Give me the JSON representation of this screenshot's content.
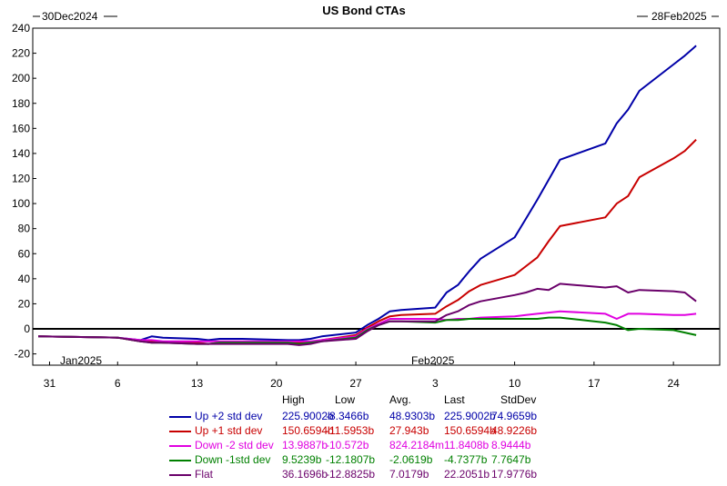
{
  "chart_data": {
    "type": "line",
    "title": "US Bond CTAs",
    "date_start": "30Dec2024",
    "date_end": "28Feb2025",
    "month_labels": [
      "Jan2025",
      "Feb2025"
    ],
    "x_tick_labels": [
      "31",
      "6",
      "13",
      "20",
      "27",
      "3",
      "10",
      "17",
      "24"
    ],
    "x_tick_dates": [
      "2024-12-31",
      "2025-01-06",
      "2025-01-13",
      "2025-01-20",
      "2025-01-27",
      "2025-02-03",
      "2025-02-10",
      "2025-02-17",
      "2025-02-24"
    ],
    "x_range": [
      "2024-12-30",
      "2025-02-28"
    ],
    "y_ticks": [
      -20,
      0,
      20,
      40,
      60,
      80,
      100,
      120,
      140,
      160,
      180,
      200,
      220,
      240
    ],
    "ylim": [
      -28,
      240
    ],
    "zero_line": true,
    "grid": false,
    "legend_position": "bottom",
    "stat_headers": [
      "High",
      "Low",
      "Avg.",
      "Last",
      "StdDev"
    ],
    "series": [
      {
        "name": "Up +2 std dev",
        "color": "#0000a8",
        "stats": [
          "225.9002b",
          "-8.3466b",
          "48.9303b",
          "225.9002b",
          "74.9659b"
        ],
        "x": [
          "2024-12-30",
          "2025-01-06",
          "2025-01-08",
          "2025-01-09",
          "2025-01-10",
          "2025-01-13",
          "2025-01-14",
          "2025-01-15",
          "2025-01-17",
          "2025-01-21",
          "2025-01-22",
          "2025-01-23",
          "2025-01-24",
          "2025-01-27",
          "2025-01-28",
          "2025-01-29",
          "2025-01-30",
          "2025-01-31",
          "2025-02-03",
          "2025-02-04",
          "2025-02-05",
          "2025-02-06",
          "2025-02-07",
          "2025-02-10",
          "2025-02-11",
          "2025-02-12",
          "2025-02-13",
          "2025-02-14",
          "2025-02-18",
          "2025-02-19",
          "2025-02-20",
          "2025-02-21",
          "2025-02-24",
          "2025-02-25",
          "2025-02-26"
        ],
        "y": [
          -6,
          -7,
          -9,
          -6,
          -7,
          -8,
          -9,
          -8,
          -8,
          -9,
          -9,
          -8,
          -6,
          -3,
          3,
          8,
          14,
          15,
          17,
          29,
          35,
          46,
          56,
          73,
          88,
          103,
          119,
          135,
          148,
          164,
          175,
          190,
          211,
          218,
          226
        ]
      },
      {
        "name": "Up +1 std dev",
        "color": "#c80000",
        "stats": [
          "150.6594b",
          "-11.5953b",
          "27.943b",
          "150.6594b",
          "48.9226b"
        ],
        "x": [
          "2024-12-30",
          "2025-01-06",
          "2025-01-08",
          "2025-01-09",
          "2025-01-10",
          "2025-01-13",
          "2025-01-14",
          "2025-01-15",
          "2025-01-17",
          "2025-01-21",
          "2025-01-22",
          "2025-01-23",
          "2025-01-24",
          "2025-01-27",
          "2025-01-28",
          "2025-01-29",
          "2025-01-30",
          "2025-01-31",
          "2025-02-03",
          "2025-02-04",
          "2025-02-05",
          "2025-02-06",
          "2025-02-07",
          "2025-02-10",
          "2025-02-11",
          "2025-02-12",
          "2025-02-13",
          "2025-02-14",
          "2025-02-18",
          "2025-02-19",
          "2025-02-20",
          "2025-02-21",
          "2025-02-24",
          "2025-02-25",
          "2025-02-26"
        ],
        "y": [
          -6,
          -7,
          -10,
          -10,
          -11,
          -11,
          -12,
          -11,
          -11,
          -11,
          -11,
          -11,
          -9,
          -5,
          1,
          6,
          10,
          11,
          12,
          18,
          23,
          30,
          35,
          43,
          50,
          57,
          70,
          82,
          89,
          100,
          106,
          121,
          136,
          142,
          151
        ]
      },
      {
        "name": "Down -2 std dev",
        "color": "#e000e0",
        "stats": [
          "13.9887b",
          "-10.572b",
          "824.2184m",
          "11.8408b",
          "8.9444b"
        ],
        "x": [
          "2024-12-30",
          "2025-01-06",
          "2025-01-08",
          "2025-01-09",
          "2025-01-10",
          "2025-01-13",
          "2025-01-14",
          "2025-01-15",
          "2025-01-17",
          "2025-01-21",
          "2025-01-22",
          "2025-01-23",
          "2025-01-24",
          "2025-01-27",
          "2025-01-28",
          "2025-01-29",
          "2025-01-30",
          "2025-01-31",
          "2025-02-03",
          "2025-02-04",
          "2025-02-05",
          "2025-02-06",
          "2025-02-07",
          "2025-02-10",
          "2025-02-11",
          "2025-02-12",
          "2025-02-13",
          "2025-02-14",
          "2025-02-18",
          "2025-02-19",
          "2025-02-20",
          "2025-02-21",
          "2025-02-24",
          "2025-02-25",
          "2025-02-26"
        ],
        "y": [
          -6,
          -7,
          -9,
          -9,
          -10,
          -10,
          -10,
          -10,
          -10,
          -10,
          -10,
          -10,
          -9,
          -6,
          0,
          4,
          8,
          8,
          8,
          7,
          8,
          8,
          9,
          10,
          11,
          12,
          13,
          14,
          12,
          8,
          12,
          12,
          11,
          11,
          12
        ]
      },
      {
        "name": "Down -1std dev",
        "color": "#008000",
        "stats": [
          "9.5239b",
          "-12.1807b",
          "-2.0619b",
          "-4.7377b",
          "7.7647b"
        ],
        "x": [
          "2024-12-30",
          "2025-01-06",
          "2025-01-08",
          "2025-01-09",
          "2025-01-10",
          "2025-01-13",
          "2025-01-14",
          "2025-01-15",
          "2025-01-17",
          "2025-01-21",
          "2025-01-22",
          "2025-01-23",
          "2025-01-24",
          "2025-01-27",
          "2025-01-28",
          "2025-01-29",
          "2025-01-30",
          "2025-01-31",
          "2025-02-03",
          "2025-02-04",
          "2025-02-05",
          "2025-02-06",
          "2025-02-07",
          "2025-02-10",
          "2025-02-11",
          "2025-02-12",
          "2025-02-13",
          "2025-02-14",
          "2025-02-18",
          "2025-02-19",
          "2025-02-20",
          "2025-02-21",
          "2025-02-24",
          "2025-02-25",
          "2025-02-26"
        ],
        "y": [
          -6,
          -7,
          -10,
          -11,
          -11,
          -12,
          -12,
          -11,
          -11,
          -11,
          -12,
          -11,
          -10,
          -7,
          -1,
          3,
          6,
          6,
          5,
          7,
          7,
          8,
          8,
          8,
          8,
          8,
          9,
          9,
          5,
          3,
          -1,
          0,
          -1,
          -3,
          -5
        ]
      },
      {
        "name": "Flat",
        "color": "#6a006a",
        "stats": [
          "36.1696b",
          "-12.8825b",
          "7.0179b",
          "22.2051b",
          "17.9776b"
        ],
        "x": [
          "2024-12-30",
          "2025-01-06",
          "2025-01-08",
          "2025-01-09",
          "2025-01-10",
          "2025-01-13",
          "2025-01-14",
          "2025-01-15",
          "2025-01-17",
          "2025-01-21",
          "2025-01-22",
          "2025-01-23",
          "2025-01-24",
          "2025-01-27",
          "2025-01-28",
          "2025-01-29",
          "2025-01-30",
          "2025-01-31",
          "2025-02-03",
          "2025-02-04",
          "2025-02-05",
          "2025-02-06",
          "2025-02-07",
          "2025-02-10",
          "2025-02-11",
          "2025-02-12",
          "2025-02-13",
          "2025-02-14",
          "2025-02-18",
          "2025-02-19",
          "2025-02-20",
          "2025-02-21",
          "2025-02-24",
          "2025-02-25",
          "2025-02-26"
        ],
        "y": [
          -6,
          -7,
          -10,
          -11,
          -11,
          -12,
          -12,
          -12,
          -12,
          -12,
          -13,
          -12,
          -10,
          -8,
          -2,
          3,
          6,
          6,
          6,
          11,
          14,
          19,
          22,
          27,
          29,
          32,
          31,
          36,
          33,
          34,
          29,
          31,
          30,
          29,
          22
        ]
      }
    ]
  }
}
